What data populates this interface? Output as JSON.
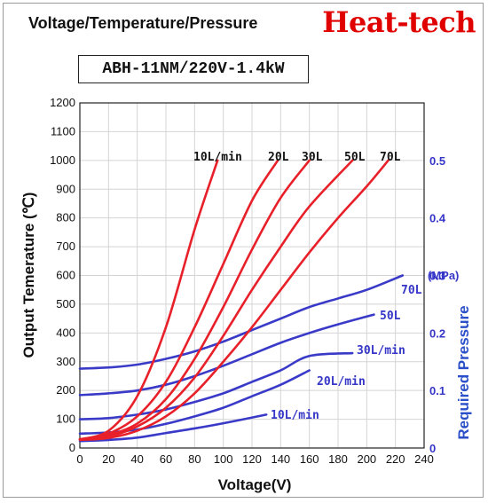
{
  "header": {
    "title": "Voltage/Temperature/Pressure",
    "brand": "Heat-tech",
    "model": "ABH-11NM/220V-1.4kW"
  },
  "chart_data": {
    "type": "line",
    "xlabel": "Voltage(V)",
    "ylabel": "Output Temerature (℃)",
    "y2label": "Required Pressure",
    "y2unit": "(MPa)",
    "xlim": [
      0,
      240
    ],
    "ylim": [
      0,
      1200
    ],
    "y2lim": [
      0,
      0.6
    ],
    "x_ticks": [
      0,
      20,
      40,
      60,
      80,
      100,
      120,
      140,
      160,
      180,
      200,
      220,
      240
    ],
    "y_ticks": [
      0,
      100,
      200,
      300,
      400,
      500,
      600,
      700,
      800,
      900,
      1000,
      1100,
      1200
    ],
    "y2_ticks": [
      "0",
      "0.1",
      "0.2",
      "0.3",
      "0.4",
      "0.5"
    ],
    "grid": true,
    "temperature_series": [
      {
        "name": "10L/min",
        "color": "#e8202a",
        "points": [
          [
            0,
            30
          ],
          [
            20,
            60
          ],
          [
            40,
            180
          ],
          [
            60,
            420
          ],
          [
            80,
            760
          ],
          [
            96,
            1000
          ]
        ]
      },
      {
        "name": "20L",
        "color": "#e8202a",
        "points": [
          [
            0,
            30
          ],
          [
            20,
            50
          ],
          [
            40,
            110
          ],
          [
            60,
            230
          ],
          [
            80,
            420
          ],
          [
            100,
            640
          ],
          [
            120,
            860
          ],
          [
            138,
            1000
          ]
        ]
      },
      {
        "name": "30L",
        "color": "#e8202a",
        "points": [
          [
            0,
            30
          ],
          [
            20,
            45
          ],
          [
            40,
            85
          ],
          [
            60,
            170
          ],
          [
            80,
            310
          ],
          [
            100,
            490
          ],
          [
            120,
            690
          ],
          [
            140,
            870
          ],
          [
            160,
            1000
          ]
        ]
      },
      {
        "name": "50L",
        "color": "#e8202a",
        "points": [
          [
            0,
            30
          ],
          [
            20,
            40
          ],
          [
            40,
            75
          ],
          [
            60,
            140
          ],
          [
            80,
            245
          ],
          [
            100,
            390
          ],
          [
            120,
            550
          ],
          [
            140,
            700
          ],
          [
            160,
            840
          ],
          [
            190,
            1000
          ]
        ]
      },
      {
        "name": "70L",
        "color": "#e8202a",
        "points": [
          [
            0,
            28
          ],
          [
            20,
            35
          ],
          [
            40,
            60
          ],
          [
            60,
            110
          ],
          [
            80,
            190
          ],
          [
            100,
            300
          ],
          [
            120,
            420
          ],
          [
            140,
            550
          ],
          [
            160,
            680
          ],
          [
            180,
            800
          ],
          [
            200,
            910
          ],
          [
            215,
            1000
          ]
        ]
      }
    ],
    "pressure_series": [
      {
        "name": "10L/min",
        "color": "#3a3ac8",
        "points": [
          [
            0,
            0.012
          ],
          [
            20,
            0.014
          ],
          [
            40,
            0.018
          ],
          [
            60,
            0.026
          ],
          [
            80,
            0.034
          ],
          [
            100,
            0.043
          ],
          [
            130,
            0.058
          ]
        ]
      },
      {
        "name": "20L/min",
        "color": "#3a3ac8",
        "points": [
          [
            0,
            0.025
          ],
          [
            20,
            0.027
          ],
          [
            40,
            0.032
          ],
          [
            60,
            0.042
          ],
          [
            80,
            0.055
          ],
          [
            100,
            0.07
          ],
          [
            120,
            0.09
          ],
          [
            140,
            0.11
          ],
          [
            160,
            0.135
          ]
        ]
      },
      {
        "name": "30L/min",
        "color": "#3a3ac8",
        "points": [
          [
            0,
            0.05
          ],
          [
            20,
            0.052
          ],
          [
            40,
            0.058
          ],
          [
            60,
            0.067
          ],
          [
            80,
            0.08
          ],
          [
            100,
            0.095
          ],
          [
            120,
            0.115
          ],
          [
            140,
            0.135
          ],
          [
            160,
            0.16
          ],
          [
            190,
            0.165
          ]
        ]
      },
      {
        "name": "50L",
        "color": "#3a3ac8",
        "points": [
          [
            0,
            0.092
          ],
          [
            20,
            0.095
          ],
          [
            40,
            0.1
          ],
          [
            60,
            0.11
          ],
          [
            80,
            0.125
          ],
          [
            100,
            0.143
          ],
          [
            120,
            0.163
          ],
          [
            140,
            0.183
          ],
          [
            160,
            0.2
          ],
          [
            180,
            0.215
          ],
          [
            205,
            0.232
          ]
        ]
      },
      {
        "name": "70L",
        "color": "#3a3ac8",
        "points": [
          [
            0,
            0.138
          ],
          [
            20,
            0.14
          ],
          [
            40,
            0.145
          ],
          [
            60,
            0.155
          ],
          [
            80,
            0.168
          ],
          [
            100,
            0.185
          ],
          [
            120,
            0.205
          ],
          [
            140,
            0.225
          ],
          [
            160,
            0.245
          ],
          [
            180,
            0.26
          ],
          [
            200,
            0.275
          ],
          [
            225,
            0.3
          ]
        ]
      }
    ]
  }
}
